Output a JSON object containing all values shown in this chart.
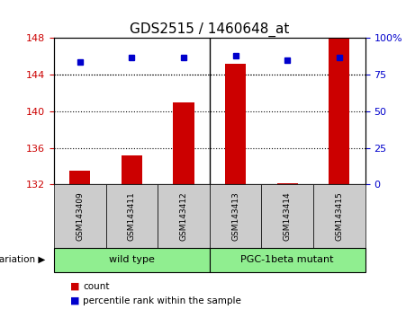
{
  "title": "GDS2515 / 1460648_at",
  "samples": [
    "GSM143409",
    "GSM143411",
    "GSM143412",
    "GSM143413",
    "GSM143414",
    "GSM143415"
  ],
  "bar_values": [
    133.5,
    135.2,
    141.0,
    145.2,
    132.1,
    148.0
  ],
  "bar_base": 132,
  "percentile_values": [
    84,
    87,
    87,
    88,
    85,
    87
  ],
  "bar_color": "#cc0000",
  "dot_color": "#0000cc",
  "ylim_left": [
    132,
    148
  ],
  "ylim_right": [
    0,
    100
  ],
  "yticks_left": [
    132,
    136,
    140,
    144,
    148
  ],
  "ytick_labels_left": [
    "132",
    "136",
    "140",
    "144",
    "148"
  ],
  "yticks_right": [
    0,
    25,
    50,
    75,
    100
  ],
  "ytick_labels_right": [
    "0",
    "25",
    "50",
    "75",
    "100%"
  ],
  "grid_values": [
    136,
    140,
    144
  ],
  "group_split": 3,
  "groups": [
    {
      "label": "wild type",
      "color": "#90ee90"
    },
    {
      "label": "PGC-1beta mutant",
      "color": "#90ee90"
    }
  ],
  "legend_count_label": "count",
  "legend_percentile_label": "percentile rank within the sample",
  "background_color": "#ffffff",
  "plot_bg_color": "#ffffff",
  "tick_label_color_left": "#cc0000",
  "tick_label_color_right": "#0000cc",
  "bar_width": 0.4
}
